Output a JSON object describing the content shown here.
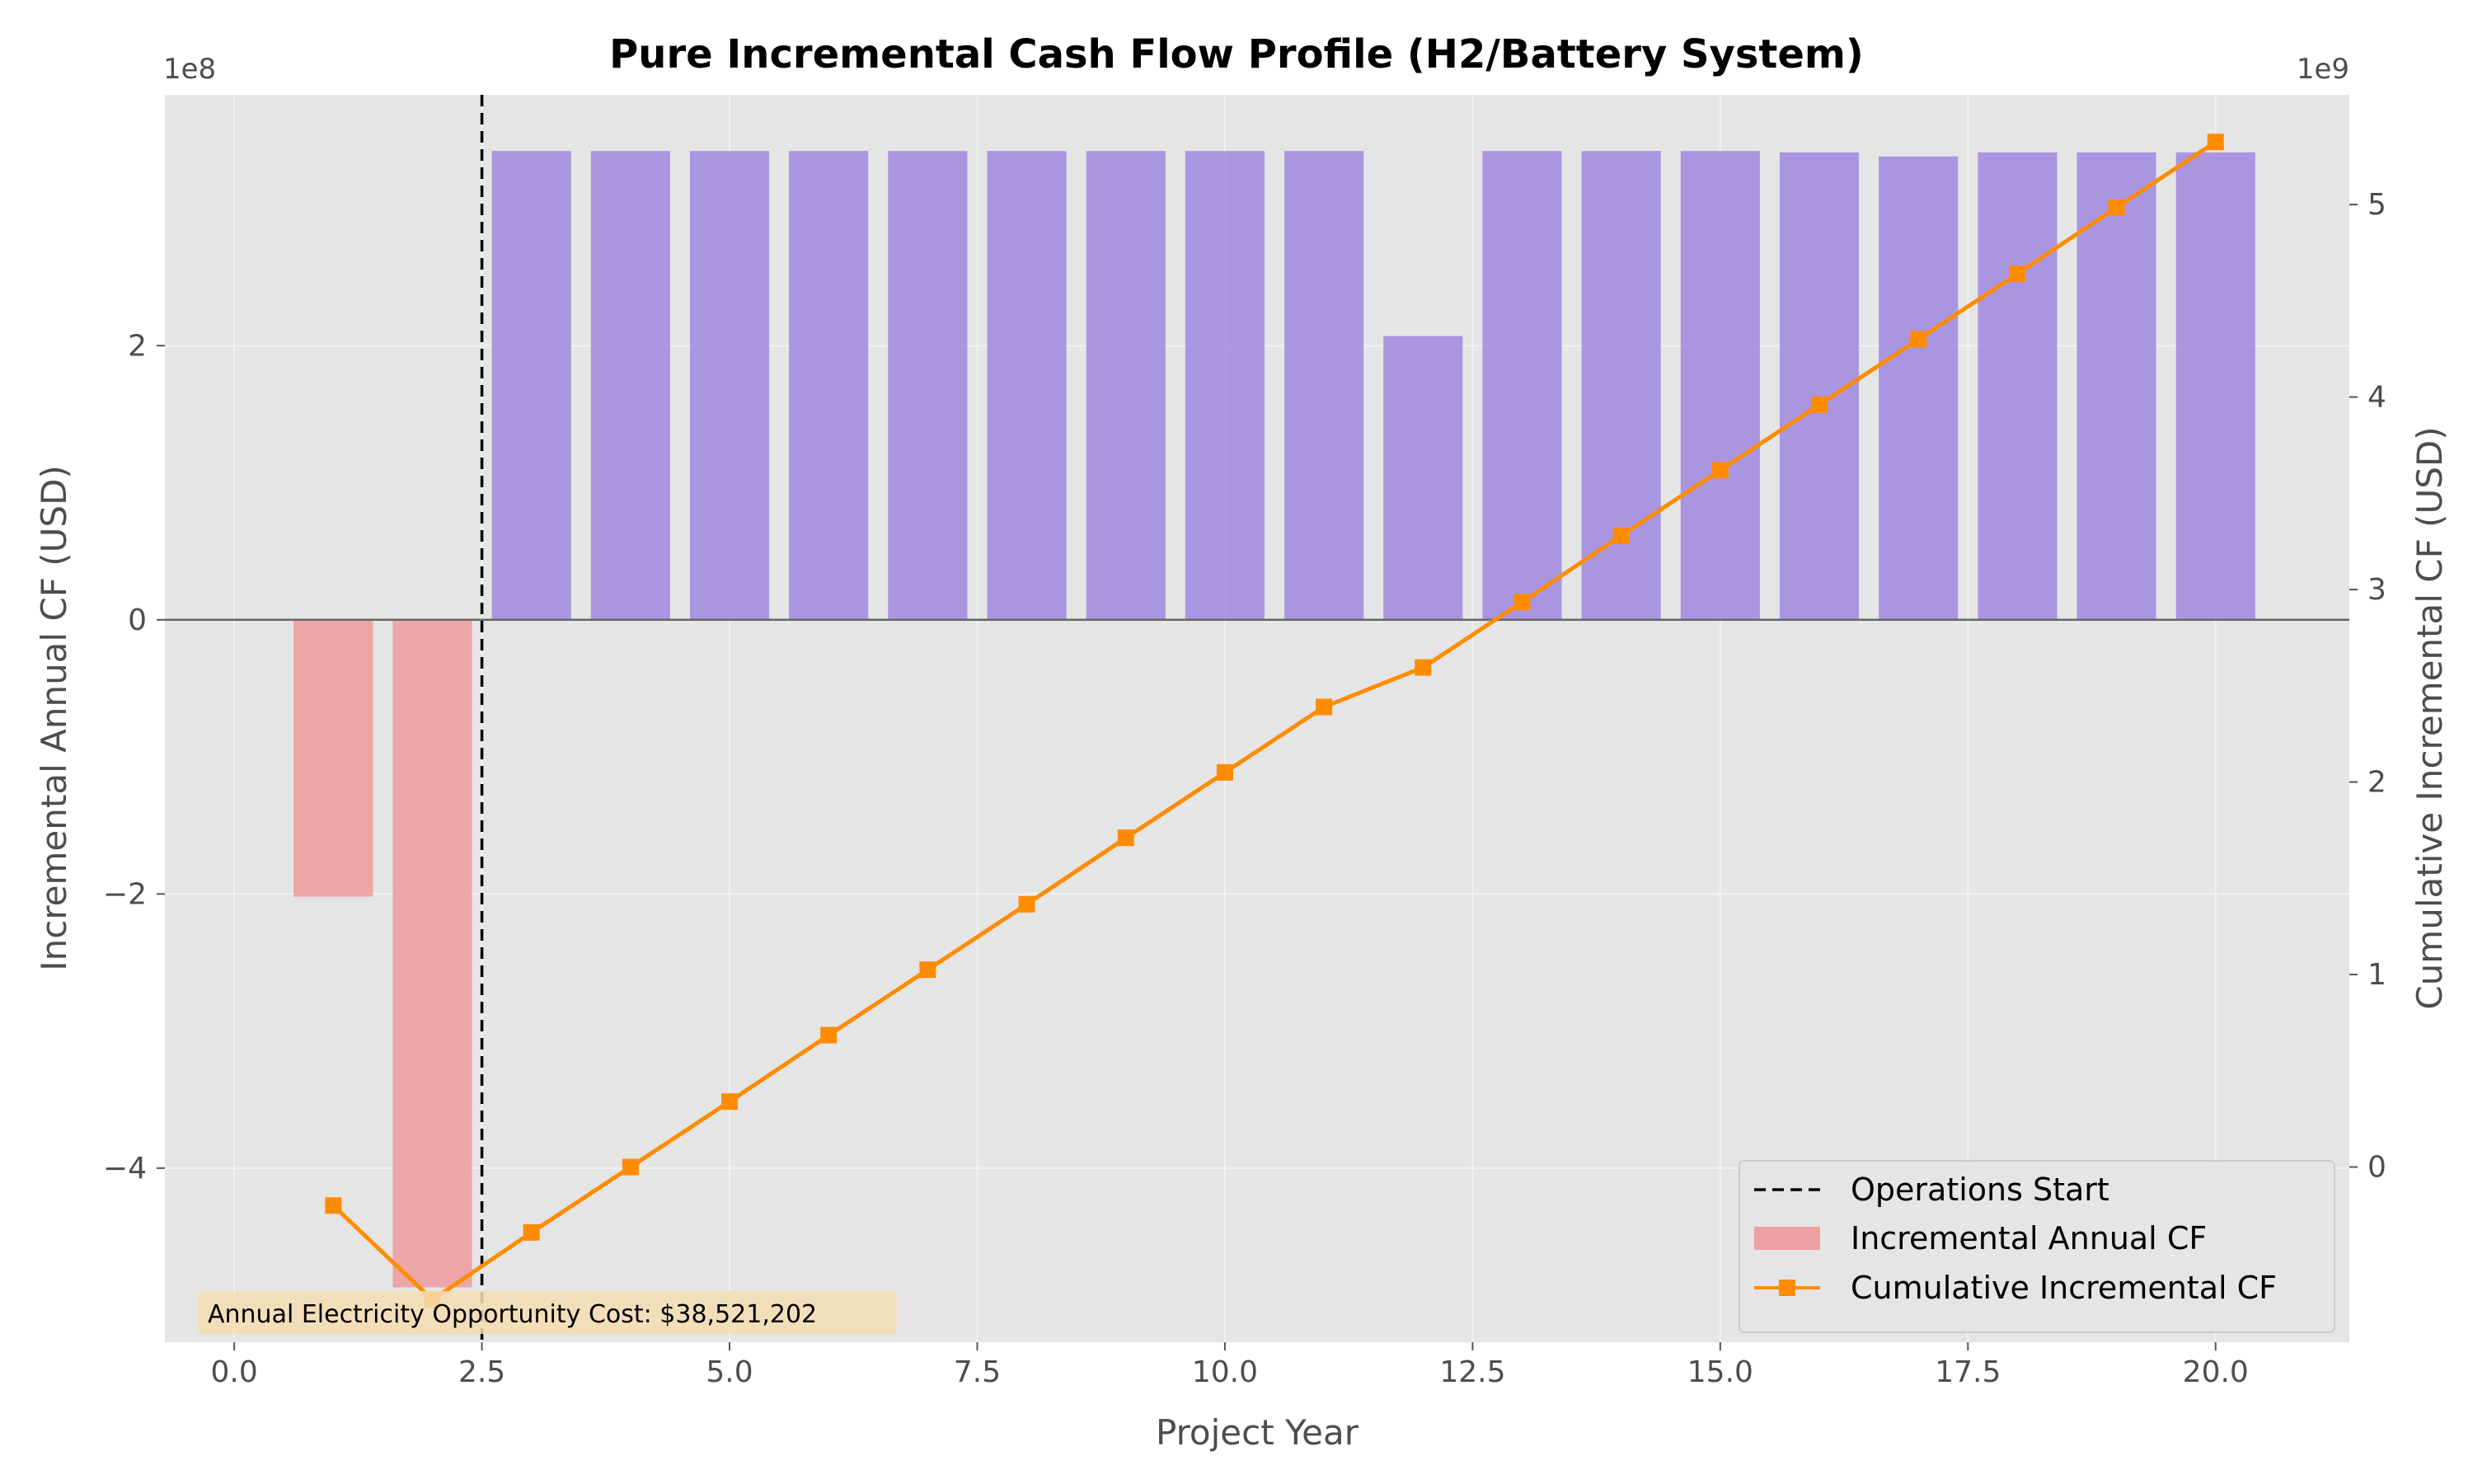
{
  "chart_data": {
    "type": "bar",
    "title": "Pure Incremental Cash Flow Profile (H2/Battery System)",
    "xlabel": "Project Year",
    "ylabel": "Incremental Annual CF (USD)",
    "y2label": "Cumulative Incremental CF (USD)",
    "xlim": [
      -0.7,
      21.35
    ],
    "ylim": [
      -527000000,
      383000000
    ],
    "y2lim": [
      -910000000,
      5570000000
    ],
    "y_offset_label": "1e8",
    "y2_offset_label": "1e9",
    "x_ticks": [
      0,
      2.5,
      5,
      7.5,
      10,
      12.5,
      15,
      17.5,
      20
    ],
    "x_tick_labels": [
      "0.0",
      "2.5",
      "5.0",
      "7.5",
      "10.0",
      "12.5",
      "15.0",
      "17.5",
      "20.0"
    ],
    "y_ticks": [
      -400000000,
      -200000000,
      0,
      200000000
    ],
    "y_tick_labels": [
      "−4",
      "−2",
      "0",
      "2"
    ],
    "y2_ticks": [
      0,
      1000000000,
      2000000000,
      3000000000,
      4000000000,
      5000000000
    ],
    "y2_tick_labels": [
      "0",
      "1",
      "2",
      "3",
      "4",
      "5"
    ],
    "grid": true,
    "legend_position": "lower-right",
    "series": [
      {
        "name": "Incremental Annual CF",
        "kind": "bar",
        "x": [
          1,
          2,
          3,
          4,
          5,
          6,
          7,
          8,
          9,
          10,
          11,
          12,
          13,
          14,
          15,
          16,
          17,
          18,
          19,
          20
        ],
        "values": [
          -202000000,
          -487000000,
          342000000,
          342000000,
          342000000,
          342000000,
          342000000,
          342000000,
          342000000,
          342000000,
          342000000,
          207000000,
          342000000,
          342000000,
          342000000,
          341000000,
          338000000,
          341000000,
          341000000,
          341000000
        ],
        "positive_color": "#9b82df",
        "negative_color": "#ef9597"
      },
      {
        "name": "Cumulative Incremental CF",
        "kind": "line",
        "axis": "right",
        "x": [
          1,
          2,
          3,
          4,
          5,
          6,
          7,
          8,
          9,
          10,
          11,
          12,
          13,
          14,
          15,
          16,
          17,
          18,
          19,
          20
        ],
        "values": [
          -200000000,
          -690000000,
          -340000000,
          0,
          340000000,
          685000000,
          1025000000,
          1365000000,
          1710000000,
          2050000000,
          2390000000,
          2595000000,
          2935000000,
          3280000000,
          3620000000,
          3960000000,
          4300000000,
          4640000000,
          4985000000,
          5325000000
        ],
        "color": "#ff8c00",
        "marker": "square"
      }
    ],
    "vline": {
      "x": 2.5,
      "label": "Operations Start",
      "style": "dashed",
      "color": "#000000"
    },
    "annotation": "Annual Electricity Opportunity Cost: $38,521,202"
  }
}
